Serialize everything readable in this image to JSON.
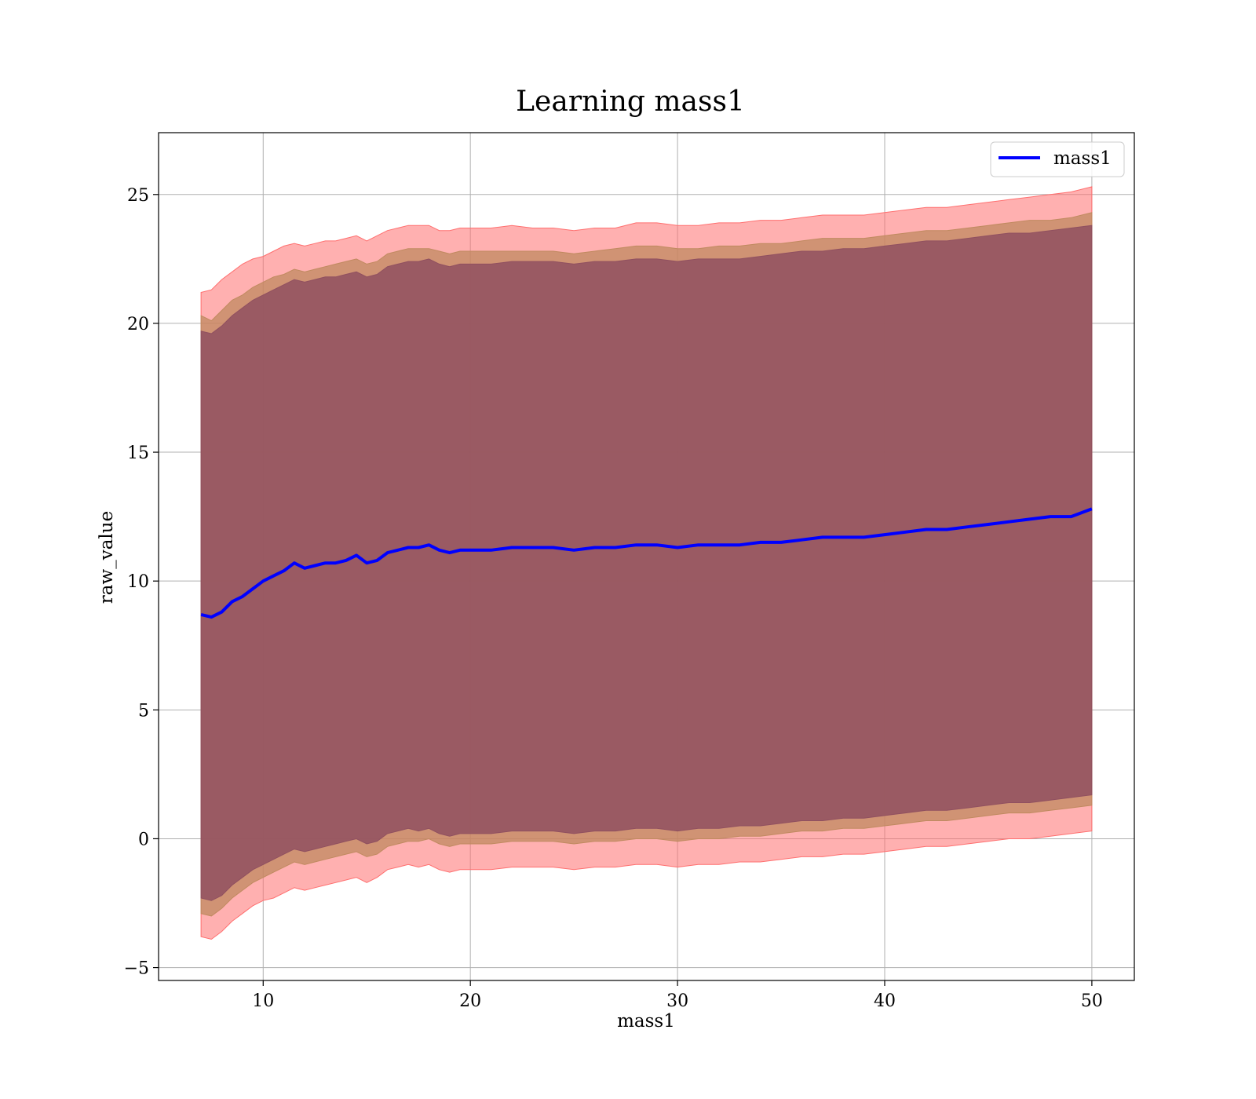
{
  "chart_data": {
    "type": "line",
    "title": "Learning mass1",
    "xlabel": "mass1",
    "ylabel": "raw_value",
    "xlim": [
      4.95,
      52.05
    ],
    "ylim": [
      -5.5,
      27.4
    ],
    "xticks": [
      10,
      20,
      30,
      40,
      50
    ],
    "xtick_labels": [
      "10",
      "20",
      "30",
      "40",
      "50"
    ],
    "yticks": [
      -5,
      0,
      5,
      10,
      15,
      20,
      25
    ],
    "ytick_labels": [
      "−5",
      "0",
      "5",
      "10",
      "15",
      "20",
      "25"
    ],
    "grid": true,
    "legend_position": "top-right",
    "series": [
      {
        "name": "mass1",
        "color": "#0000ff",
        "x": [
          7.0,
          7.5,
          8.0,
          8.5,
          9.0,
          9.5,
          10.0,
          10.5,
          11.0,
          11.5,
          12.0,
          12.5,
          13.0,
          13.5,
          14.0,
          14.5,
          15.0,
          15.5,
          16.0,
          16.5,
          17.0,
          17.5,
          18.0,
          18.5,
          19.0,
          19.5,
          20.0,
          21.0,
          22.0,
          23.0,
          24.0,
          25.0,
          26.0,
          27.0,
          28.0,
          29.0,
          30.0,
          31.0,
          32.0,
          33.0,
          34.0,
          35.0,
          36.0,
          37.0,
          38.0,
          39.0,
          40.0,
          41.0,
          42.0,
          43.0,
          44.0,
          45.0,
          46.0,
          47.0,
          48.0,
          49.0,
          50.0
        ],
        "y": [
          8.7,
          8.6,
          8.8,
          9.2,
          9.4,
          9.7,
          10.0,
          10.2,
          10.4,
          10.7,
          10.5,
          10.6,
          10.7,
          10.7,
          10.8,
          11.0,
          10.7,
          10.8,
          11.1,
          11.2,
          11.3,
          11.3,
          11.4,
          11.2,
          11.1,
          11.2,
          11.2,
          11.2,
          11.3,
          11.3,
          11.3,
          11.2,
          11.3,
          11.3,
          11.4,
          11.4,
          11.3,
          11.4,
          11.4,
          11.4,
          11.5,
          11.5,
          11.6,
          11.7,
          11.7,
          11.7,
          11.8,
          11.9,
          12.0,
          12.0,
          12.1,
          12.2,
          12.3,
          12.4,
          12.5,
          12.5,
          12.8
        ]
      }
    ],
    "bands": [
      {
        "color": "#ff6f6f",
        "opacity": 0.55,
        "upper": [
          21.2,
          21.3,
          21.7,
          22.0,
          22.3,
          22.5,
          22.6,
          22.8,
          23.0,
          23.1,
          23.0,
          23.1,
          23.2,
          23.2,
          23.3,
          23.4,
          23.2,
          23.4,
          23.6,
          23.7,
          23.8,
          23.8,
          23.8,
          23.6,
          23.6,
          23.7,
          23.7,
          23.7,
          23.8,
          23.7,
          23.7,
          23.6,
          23.7,
          23.7,
          23.9,
          23.9,
          23.8,
          23.8,
          23.9,
          23.9,
          24.0,
          24.0,
          24.1,
          24.2,
          24.2,
          24.2,
          24.3,
          24.4,
          24.5,
          24.5,
          24.6,
          24.7,
          24.8,
          24.9,
          25.0,
          25.1,
          25.3
        ],
        "lower": [
          -3.8,
          -3.9,
          -3.6,
          -3.2,
          -2.9,
          -2.6,
          -2.4,
          -2.3,
          -2.1,
          -1.9,
          -2.0,
          -1.9,
          -1.8,
          -1.7,
          -1.6,
          -1.5,
          -1.7,
          -1.5,
          -1.2,
          -1.1,
          -1.0,
          -1.1,
          -1.0,
          -1.2,
          -1.3,
          -1.2,
          -1.2,
          -1.2,
          -1.1,
          -1.1,
          -1.1,
          -1.2,
          -1.1,
          -1.1,
          -1.0,
          -1.0,
          -1.1,
          -1.0,
          -1.0,
          -0.9,
          -0.9,
          -0.8,
          -0.7,
          -0.7,
          -0.6,
          -0.6,
          -0.5,
          -0.4,
          -0.3,
          -0.3,
          -0.2,
          -0.1,
          0.0,
          0.0,
          0.1,
          0.2,
          0.3
        ]
      },
      {
        "color": "#c08a60",
        "opacity": 0.75,
        "upper": [
          20.3,
          20.1,
          20.5,
          20.9,
          21.1,
          21.4,
          21.6,
          21.8,
          21.9,
          22.1,
          22.0,
          22.1,
          22.2,
          22.3,
          22.4,
          22.5,
          22.3,
          22.4,
          22.7,
          22.8,
          22.9,
          22.9,
          22.9,
          22.8,
          22.7,
          22.8,
          22.8,
          22.8,
          22.8,
          22.8,
          22.8,
          22.7,
          22.8,
          22.9,
          23.0,
          23.0,
          22.9,
          22.9,
          23.0,
          23.0,
          23.1,
          23.1,
          23.2,
          23.3,
          23.3,
          23.3,
          23.4,
          23.5,
          23.6,
          23.6,
          23.7,
          23.8,
          23.9,
          24.0,
          24.0,
          24.1,
          24.3
        ],
        "lower": [
          -2.9,
          -3.0,
          -2.7,
          -2.3,
          -2.0,
          -1.7,
          -1.5,
          -1.3,
          -1.1,
          -0.9,
          -1.0,
          -0.9,
          -0.8,
          -0.7,
          -0.6,
          -0.5,
          -0.7,
          -0.6,
          -0.3,
          -0.2,
          -0.1,
          -0.1,
          0.0,
          -0.2,
          -0.3,
          -0.2,
          -0.2,
          -0.2,
          -0.1,
          -0.1,
          -0.1,
          -0.2,
          -0.1,
          -0.1,
          0.0,
          0.0,
          -0.1,
          0.0,
          0.0,
          0.1,
          0.1,
          0.2,
          0.3,
          0.3,
          0.4,
          0.4,
          0.5,
          0.6,
          0.7,
          0.7,
          0.8,
          0.9,
          1.0,
          1.0,
          1.1,
          1.2,
          1.3
        ]
      },
      {
        "color": "#905060",
        "opacity": 0.85,
        "upper": [
          19.7,
          19.6,
          19.9,
          20.3,
          20.6,
          20.9,
          21.1,
          21.3,
          21.5,
          21.7,
          21.6,
          21.7,
          21.8,
          21.8,
          21.9,
          22.0,
          21.8,
          21.9,
          22.2,
          22.3,
          22.4,
          22.4,
          22.5,
          22.3,
          22.2,
          22.3,
          22.3,
          22.3,
          22.4,
          22.4,
          22.4,
          22.3,
          22.4,
          22.4,
          22.5,
          22.5,
          22.4,
          22.5,
          22.5,
          22.5,
          22.6,
          22.7,
          22.8,
          22.8,
          22.9,
          22.9,
          23.0,
          23.1,
          23.2,
          23.2,
          23.3,
          23.4,
          23.5,
          23.5,
          23.6,
          23.7,
          23.8
        ],
        "lower": [
          -2.3,
          -2.4,
          -2.2,
          -1.8,
          -1.5,
          -1.2,
          -1.0,
          -0.8,
          -0.6,
          -0.4,
          -0.5,
          -0.4,
          -0.3,
          -0.2,
          -0.1,
          0.0,
          -0.2,
          -0.1,
          0.2,
          0.3,
          0.4,
          0.3,
          0.4,
          0.2,
          0.1,
          0.2,
          0.2,
          0.2,
          0.3,
          0.3,
          0.3,
          0.2,
          0.3,
          0.3,
          0.4,
          0.4,
          0.3,
          0.4,
          0.4,
          0.5,
          0.5,
          0.6,
          0.7,
          0.7,
          0.8,
          0.8,
          0.9,
          1.0,
          1.1,
          1.1,
          1.2,
          1.3,
          1.4,
          1.4,
          1.5,
          1.6,
          1.7
        ]
      }
    ]
  }
}
